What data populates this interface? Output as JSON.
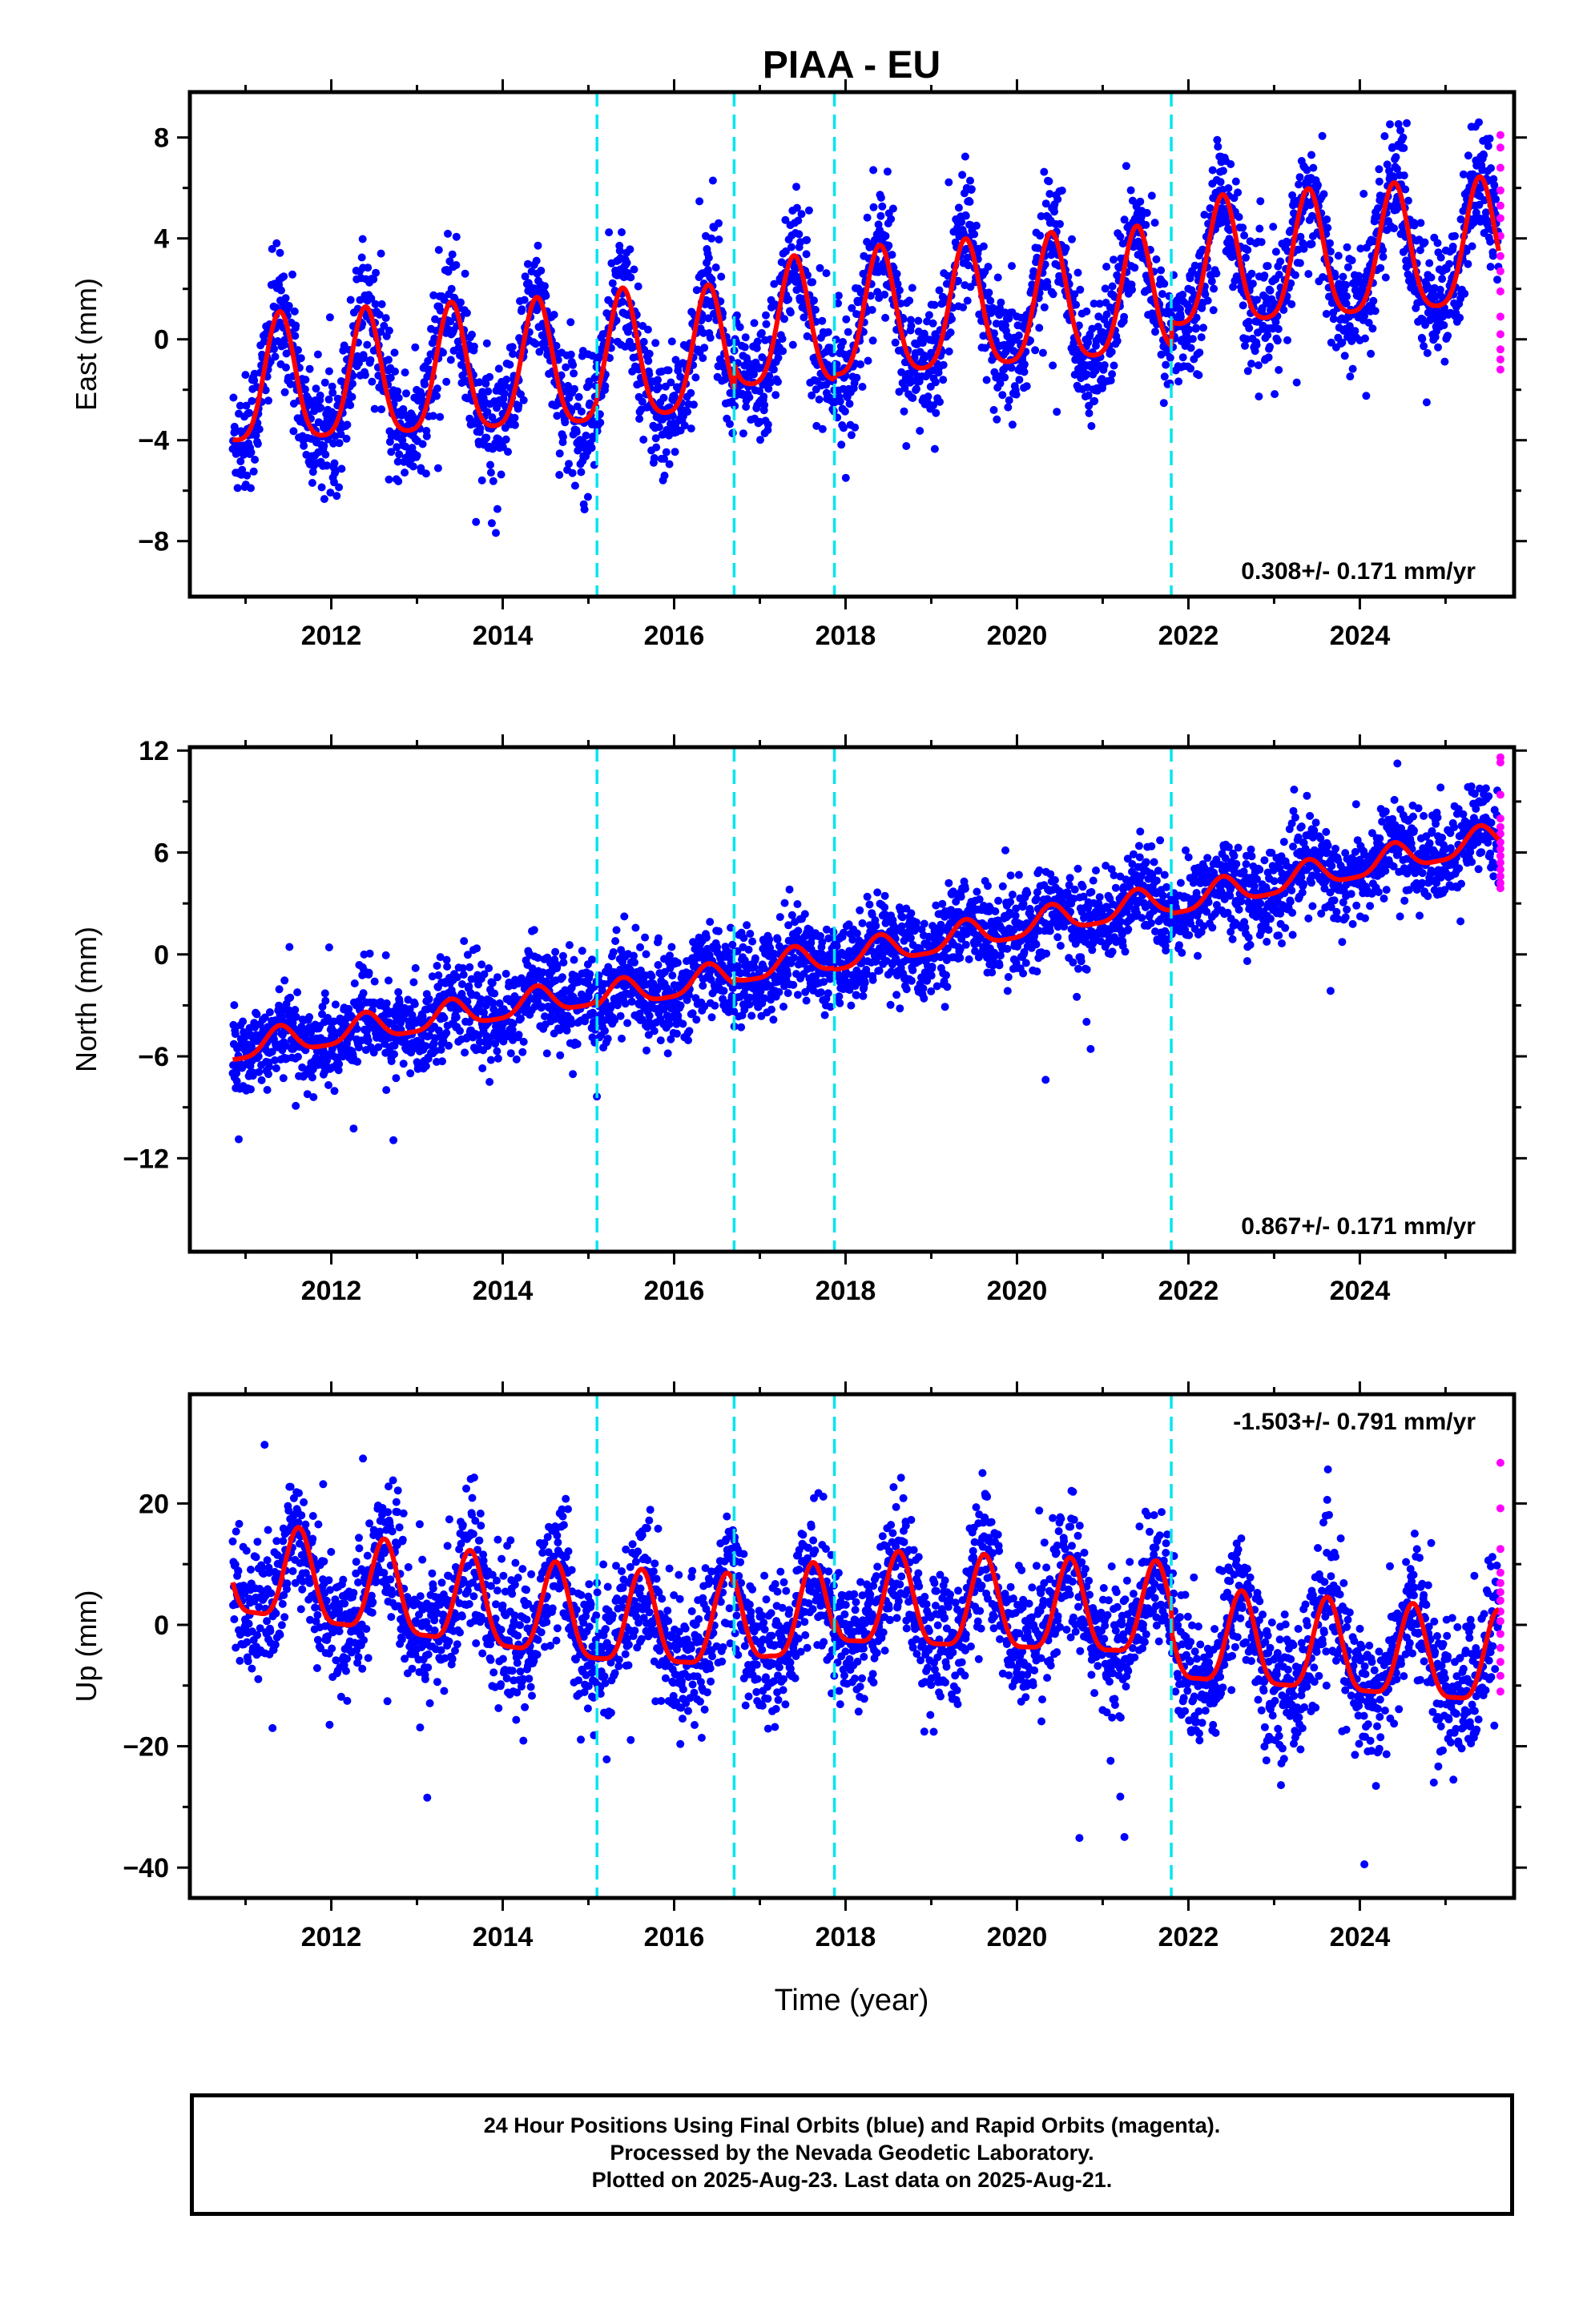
{
  "chart_data": {
    "type": "scatter",
    "title": "PIAA - EU",
    "xlabel": "Time (year)",
    "x_ticks": [
      2012,
      2014,
      2016,
      2018,
      2020,
      2022,
      2024
    ],
    "xlim": [
      2010.35,
      2025.8
    ],
    "vertical_markers": [
      2015.1,
      2016.7,
      2017.87,
      2021.8
    ],
    "series_legend": [
      {
        "name": "Final Orbits",
        "color": "#0000ff"
      },
      {
        "name": "Rapid Orbits",
        "color": "#ff00ff"
      },
      {
        "name": "Model fit",
        "color": "#ff0000"
      }
    ],
    "panels": [
      {
        "id": "east",
        "ylabel": "East (mm)",
        "ylim": [
          -10.2,
          9.8
        ],
        "y_ticks": [
          -8,
          -4,
          0,
          4,
          8
        ],
        "rate_label": "0.308+/- 0.171 mm/yr",
        "rate_position": "bottom-right",
        "fit": {
          "start_year": 2010.85,
          "end_year": 2025.62,
          "annual_amplitude": 2.5,
          "phase_peak_year": 2011.4,
          "semiannual_amplitude": 0.5,
          "segments": [
            {
              "from": 2010.85,
              "to": 2015.1,
              "offset_start": -2.0,
              "offset_end": -1.2
            },
            {
              "from": 2015.1,
              "to": 2016.7,
              "offset_start": -1.0,
              "offset_end": -0.8
            },
            {
              "from": 2016.7,
              "to": 2017.87,
              "offset_start": 0.2,
              "offset_end": 0.4
            },
            {
              "from": 2017.87,
              "to": 2021.8,
              "offset_start": 0.6,
              "offset_end": 1.6
            },
            {
              "from": 2021.8,
              "to": 2025.62,
              "offset_start": 2.6,
              "offset_end": 3.5
            }
          ]
        },
        "noise": 1.2,
        "rapid_values": [
          8.1,
          7.6,
          6.8,
          5.9,
          5.3,
          4.8,
          4.1,
          3.3,
          2.7,
          1.9,
          0.9,
          0.2,
          -0.4,
          -0.8,
          -1.2
        ]
      },
      {
        "id": "north",
        "ylabel": "North (mm)",
        "ylim": [
          -17.5,
          12.2
        ],
        "y_ticks": [
          -12,
          -6,
          0,
          6,
          12
        ],
        "rate_label": "0.867+/- 0.171 mm/yr",
        "rate_position": "bottom-right",
        "fit": {
          "start_year": 2010.85,
          "end_year": 2025.62,
          "annual_amplitude": 0.8,
          "phase_peak_year": 2011.4,
          "semiannual_amplitude": 0.2,
          "segments": [
            {
              "from": 2010.85,
              "to": 2015.1,
              "offset_start": -5.6,
              "offset_end": -2.3
            },
            {
              "from": 2015.1,
              "to": 2016.7,
              "offset_start": -2.6,
              "offset_end": -1.3
            },
            {
              "from": 2016.7,
              "to": 2017.87,
              "offset_start": -1.0,
              "offset_end": -0.2
            },
            {
              "from": 2017.87,
              "to": 2021.8,
              "offset_start": -0.3,
              "offset_end": 3.2
            },
            {
              "from": 2021.8,
              "to": 2025.62,
              "offset_start": 3.0,
              "offset_end": 6.8
            }
          ]
        },
        "noise": 1.3,
        "rapid_values": [
          11.6,
          11.3,
          9.4,
          8.0,
          7.5,
          7.1,
          6.6,
          6.2,
          5.8,
          5.4,
          5.0,
          4.6,
          4.2,
          3.9
        ]
      },
      {
        "id": "up",
        "ylabel": "Up (mm)",
        "ylim": [
          -45,
          38
        ],
        "y_ticks": [
          -40,
          -20,
          0,
          20
        ],
        "rate_label": "-1.503+/- 0.791 mm/yr",
        "rate_position": "top-right",
        "fit": {
          "start_year": 2010.85,
          "end_year": 2025.62,
          "annual_amplitude": 7.5,
          "phase_peak_year": 2011.62,
          "semiannual_amplitude": 2.0,
          "segments": [
            {
              "from": 2010.85,
              "to": 2015.1,
              "offset_start": 8.0,
              "offset_end": 0.0
            },
            {
              "from": 2015.1,
              "to": 2016.7,
              "offset_start": 0.0,
              "offset_end": -1.0
            },
            {
              "from": 2016.7,
              "to": 2017.87,
              "offset_start": 0.0,
              "offset_end": 1.0
            },
            {
              "from": 2017.87,
              "to": 2021.8,
              "offset_start": 3.0,
              "offset_end": 1.0
            },
            {
              "from": 2021.8,
              "to": 2025.62,
              "offset_start": -3.0,
              "offset_end": -7.0
            }
          ]
        },
        "noise": 5.5,
        "rapid_values": [
          26.7,
          19.2,
          12.5,
          8.6,
          6.9,
          5.4,
          4.0,
          2.2,
          0.6,
          -1.5,
          -3.8,
          -6.1,
          -8.4,
          -11.0
        ]
      }
    ]
  },
  "caption": {
    "line1": "24 Hour Positions Using Final Orbits (blue) and Rapid Orbits (magenta).",
    "line2": "Processed by the Nevada Geodetic Laboratory.",
    "line3": "Plotted on 2025-Aug-23. Last data on 2025-Aug-21."
  }
}
